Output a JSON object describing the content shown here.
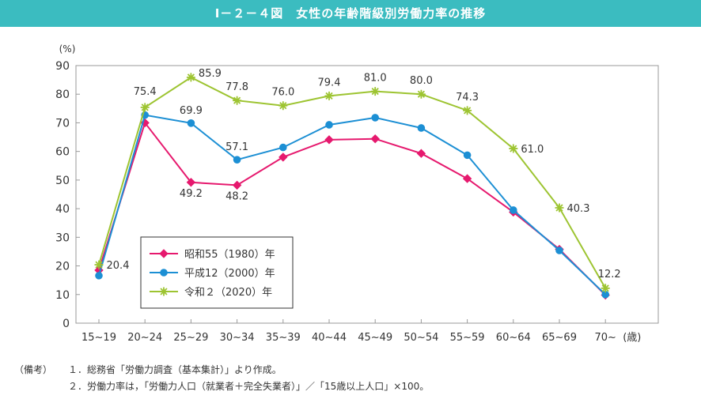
{
  "header": {
    "title": "Ⅰ－２－４図　女性の年齢階級別労働力率の推移"
  },
  "notes": {
    "prefix": "（備考）",
    "items": [
      "１．総務省「労働力調査（基本集計）」より作成。",
      "２．労働力率は，「労働力人口（就業者＋完全失業者）」／「15歳以上人口」×100。"
    ]
  },
  "chart_data": {
    "type": "line",
    "title": "",
    "ylabel": "(%)",
    "xlabel": "(歳)",
    "ylim": [
      0,
      90
    ],
    "yticks": [
      0,
      10,
      20,
      30,
      40,
      50,
      60,
      70,
      80,
      90
    ],
    "grid": false,
    "legend_position": "bottom-left",
    "categories": [
      "15~19",
      "20~24",
      "25~29",
      "30~34",
      "35~39",
      "40~44",
      "45~49",
      "50~54",
      "55~59",
      "60~64",
      "65~69",
      "70~"
    ],
    "series": [
      {
        "name": "昭和55（1980）年",
        "color": "#e6196e",
        "marker": "diamond",
        "values": [
          18.5,
          70.0,
          49.2,
          48.2,
          58.0,
          64.1,
          64.4,
          59.3,
          50.5,
          38.8,
          25.8,
          9.8
        ],
        "labeled": {
          "2": "49.2",
          "3": "48.2"
        }
      },
      {
        "name": "平成12（2000）年",
        "color": "#1c8fd4",
        "marker": "circle",
        "values": [
          16.6,
          72.7,
          69.9,
          57.1,
          61.4,
          69.3,
          71.8,
          68.2,
          58.7,
          39.5,
          25.4,
          10.0
        ],
        "labeled": {
          "2": "69.9",
          "3": "57.1"
        }
      },
      {
        "name": "令和２（2020）年",
        "color": "#9dc431",
        "marker": "asterisk",
        "values": [
          20.4,
          75.4,
          85.9,
          77.8,
          76.0,
          79.4,
          81.0,
          80.0,
          74.3,
          61.0,
          40.3,
          12.2
        ],
        "labeled": {
          "0": "20.4",
          "1": "75.4",
          "2": "85.9",
          "3": "77.8",
          "4": "76.0",
          "5": "79.4",
          "6": "81.0",
          "7": "80.0",
          "8": "74.3",
          "9": "61.0",
          "10": "40.3",
          "11": "12.2"
        }
      }
    ]
  }
}
